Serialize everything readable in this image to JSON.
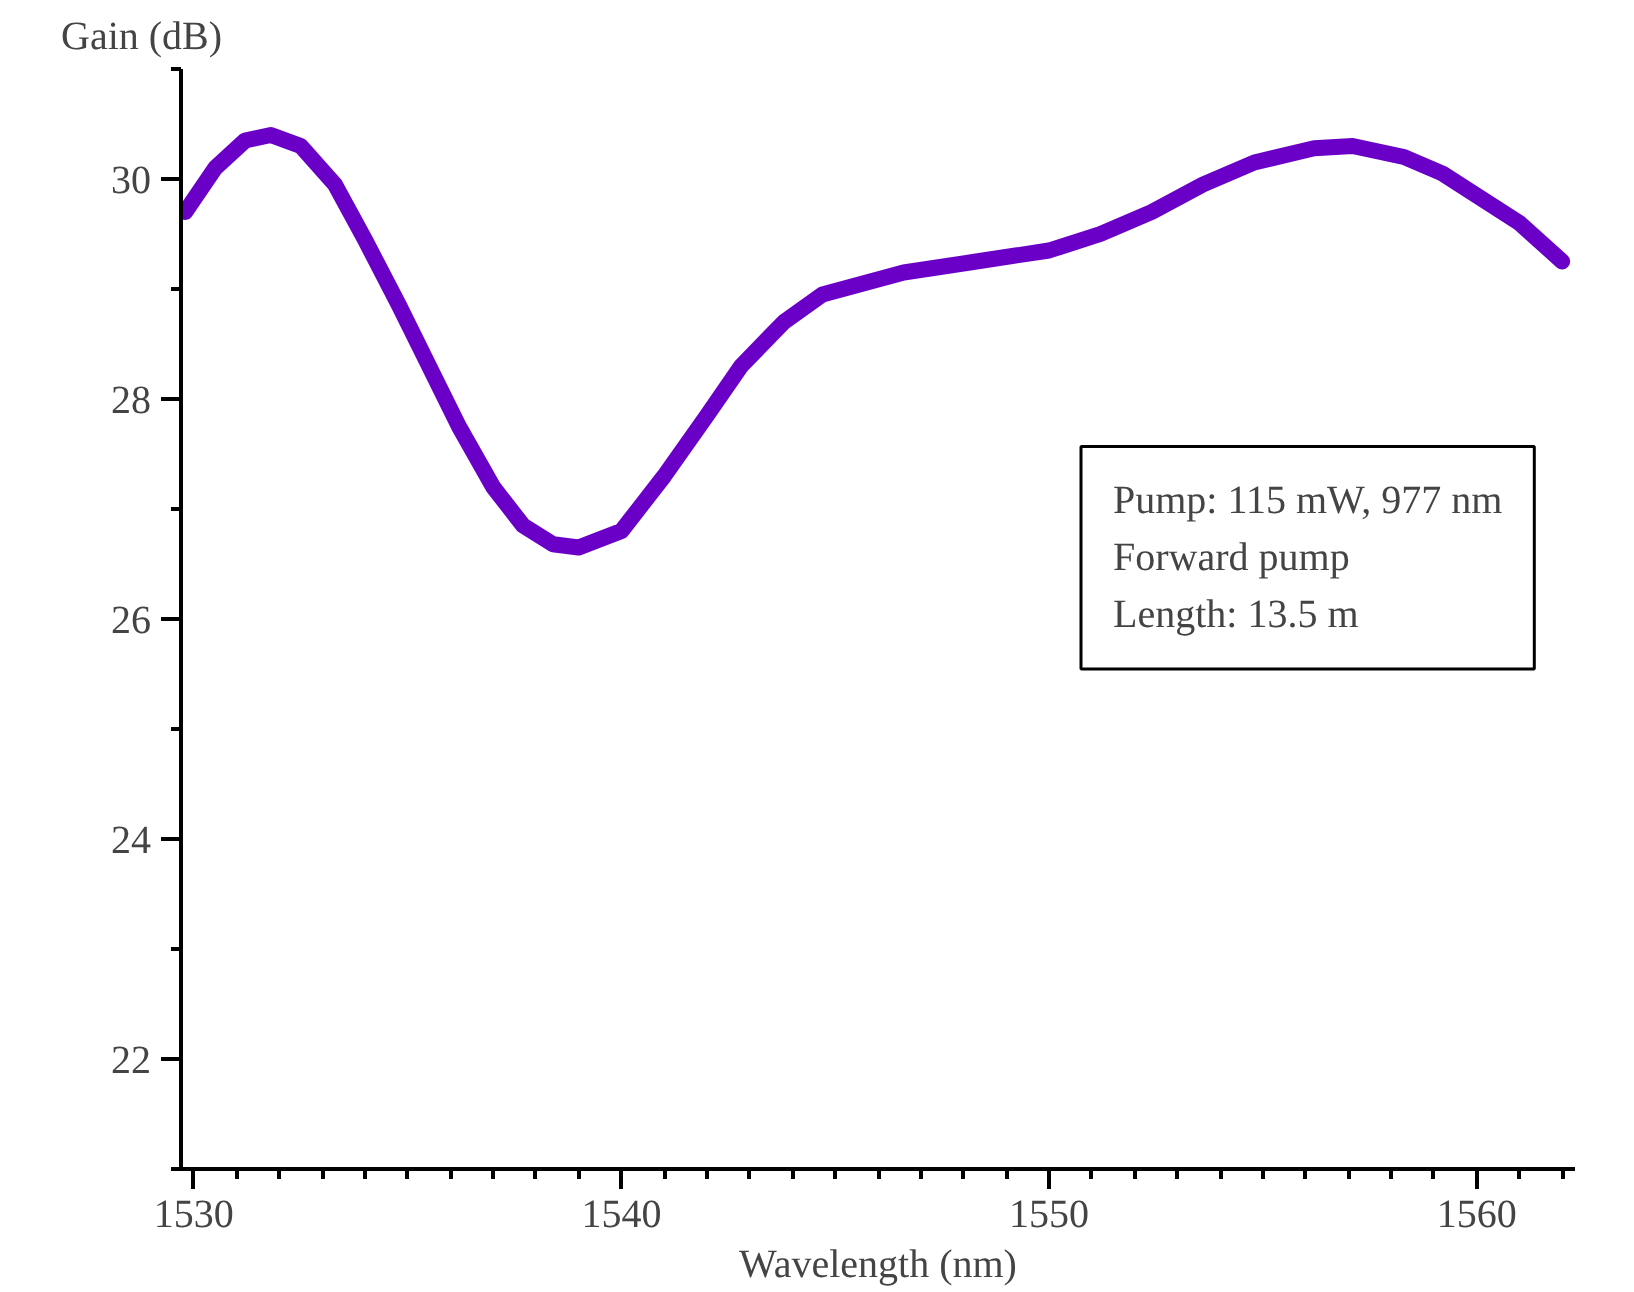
{
  "chart_data": {
    "type": "line",
    "xlabel": "Wavelength (nm)",
    "ylabel": "Gain (dB)",
    "x": [
      1529.8,
      1530.5,
      1531.2,
      1531.8,
      1532.5,
      1533.3,
      1534.0,
      1534.8,
      1535.5,
      1536.2,
      1537.0,
      1537.7,
      1538.4,
      1539.0,
      1540.0,
      1541.0,
      1542.0,
      1542.8,
      1543.8,
      1544.7,
      1546.6,
      1548.3,
      1550.0,
      1551.2,
      1552.4,
      1553.6,
      1554.8,
      1556.2,
      1557.1,
      1558.3,
      1559.2,
      1560.0,
      1561.0,
      1562.0
    ],
    "series": [
      {
        "color": "#6a00c8",
        "values": [
          29.7,
          30.1,
          30.35,
          30.4,
          30.3,
          29.95,
          29.45,
          28.85,
          28.3,
          27.75,
          27.2,
          26.85,
          26.68,
          26.65,
          26.8,
          27.3,
          27.85,
          28.3,
          28.7,
          28.95,
          29.15,
          29.25,
          29.35,
          29.5,
          29.7,
          29.95,
          30.15,
          30.28,
          30.3,
          30.2,
          30.05,
          29.85,
          29.6,
          29.25
        ]
      }
    ],
    "xlim": [
      1529.7,
      1562.3
    ],
    "ylim": [
      21,
      31
    ],
    "xticks": [
      1530,
      1540,
      1550,
      1560
    ],
    "yticks": [
      22,
      24,
      26,
      28,
      30
    ],
    "grid": false,
    "marker": "none",
    "line_style": "solid",
    "annotations": [
      "Pump: 115 mW, 977 nm",
      "Forward pump",
      "Length: 13.5 m"
    ]
  }
}
